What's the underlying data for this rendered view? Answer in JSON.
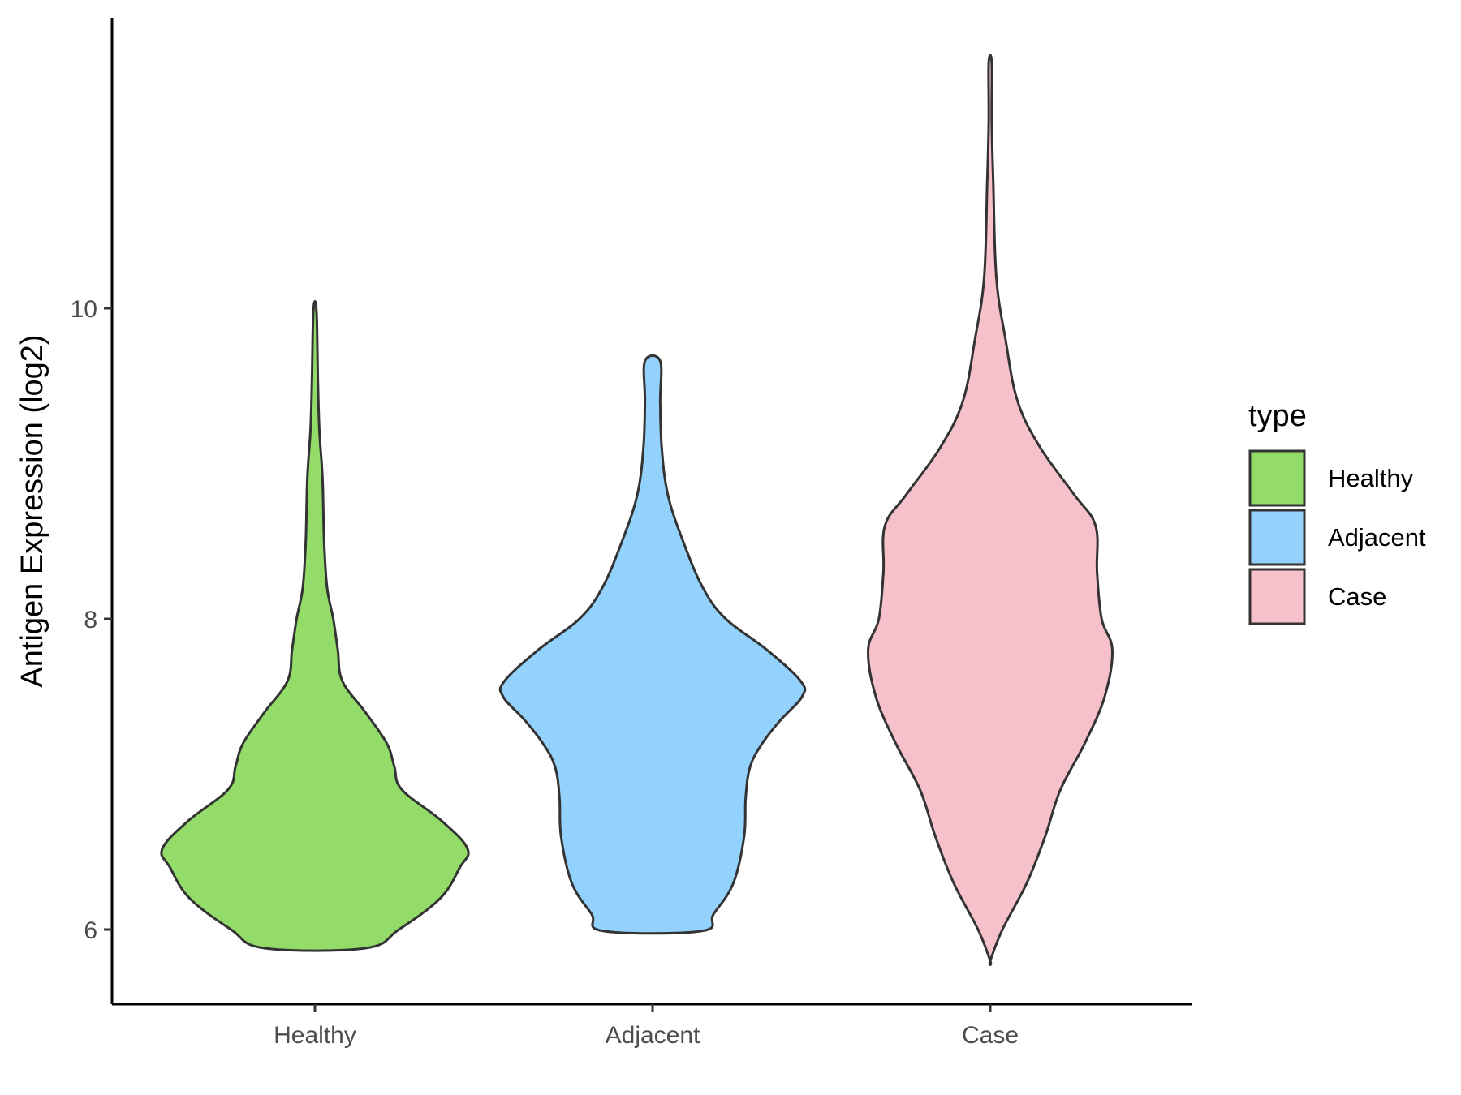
{
  "chart_data": {
    "type": "violin",
    "ylabel": "Antigen Expression (log2)",
    "xlabel": "",
    "categories": [
      "Healthy",
      "Adjacent",
      "Case"
    ],
    "yticks": [
      6,
      8,
      10
    ],
    "ylim": [
      5.5,
      11.9
    ],
    "legend": {
      "title": "type",
      "placement": "right",
      "entries": [
        "Healthy",
        "Adjacent",
        "Case"
      ]
    },
    "colors": {
      "Healthy": "#93dc6a",
      "Adjacent": "#93d2fd",
      "Case": "#f7c1cb"
    },
    "series": [
      {
        "name": "Healthy",
        "min": 5.88,
        "max": 9.98,
        "profile": [
          [
            5.88,
            0.33
          ],
          [
            6.0,
            0.55
          ],
          [
            6.2,
            0.82
          ],
          [
            6.4,
            0.95
          ],
          [
            6.52,
            1.0
          ],
          [
            6.7,
            0.83
          ],
          [
            6.9,
            0.57
          ],
          [
            7.05,
            0.52
          ],
          [
            7.2,
            0.47
          ],
          [
            7.4,
            0.33
          ],
          [
            7.6,
            0.18
          ],
          [
            7.8,
            0.15
          ],
          [
            8.0,
            0.12
          ],
          [
            8.2,
            0.08
          ],
          [
            8.5,
            0.06
          ],
          [
            8.9,
            0.05
          ],
          [
            9.2,
            0.03
          ],
          [
            9.5,
            0.02
          ],
          [
            9.98,
            0.01
          ]
        ]
      },
      {
        "name": "Adjacent",
        "min": 5.99,
        "max": 9.66,
        "profile": [
          [
            5.99,
            0.32
          ],
          [
            6.1,
            0.4
          ],
          [
            6.3,
            0.53
          ],
          [
            6.6,
            0.6
          ],
          [
            6.85,
            0.61
          ],
          [
            7.05,
            0.64
          ],
          [
            7.2,
            0.72
          ],
          [
            7.35,
            0.84
          ],
          [
            7.5,
            0.98
          ],
          [
            7.6,
            0.97
          ],
          [
            7.8,
            0.75
          ],
          [
            8.0,
            0.48
          ],
          [
            8.2,
            0.33
          ],
          [
            8.5,
            0.2
          ],
          [
            8.8,
            0.1
          ],
          [
            9.1,
            0.06
          ],
          [
            9.4,
            0.05
          ],
          [
            9.66,
            0.05
          ]
        ]
      },
      {
        "name": "Case",
        "min": 5.8,
        "max": 11.58,
        "profile": [
          [
            5.8,
            0.0
          ],
          [
            6.0,
            0.08
          ],
          [
            6.3,
            0.24
          ],
          [
            6.6,
            0.36
          ],
          [
            6.9,
            0.46
          ],
          [
            7.2,
            0.62
          ],
          [
            7.5,
            0.75
          ],
          [
            7.8,
            0.8
          ],
          [
            8.0,
            0.73
          ],
          [
            8.3,
            0.7
          ],
          [
            8.6,
            0.69
          ],
          [
            8.8,
            0.55
          ],
          [
            9.1,
            0.33
          ],
          [
            9.4,
            0.18
          ],
          [
            9.8,
            0.1
          ],
          [
            10.2,
            0.04
          ],
          [
            10.8,
            0.02
          ],
          [
            11.2,
            0.01
          ],
          [
            11.58,
            0.01
          ]
        ]
      }
    ]
  }
}
